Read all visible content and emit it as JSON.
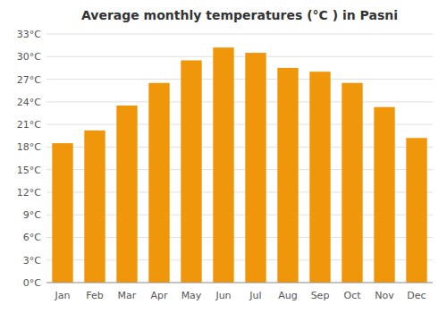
{
  "chart_data": {
    "type": "bar",
    "title": "Average monthly temperatures (°C ) in Pasni",
    "categories": [
      "Jan",
      "Feb",
      "Mar",
      "Apr",
      "May",
      "Jun",
      "Jul",
      "Aug",
      "Sep",
      "Oct",
      "Nov",
      "Dec"
    ],
    "values": [
      18.5,
      20.2,
      23.5,
      26.5,
      29.5,
      31.2,
      30.5,
      28.5,
      28.0,
      26.5,
      23.3,
      19.2
    ],
    "color": "#F0960A",
    "ylim": [
      0,
      33
    ],
    "yticks": [
      {
        "value": 0,
        "label": "0°C"
      },
      {
        "value": 3,
        "label": "3°C"
      },
      {
        "value": 6,
        "label": "6°C"
      },
      {
        "value": 9,
        "label": "9°C"
      },
      {
        "value": 12,
        "label": "12°C"
      },
      {
        "value": 15,
        "label": "15°C"
      },
      {
        "value": 18,
        "label": "18°C"
      },
      {
        "value": 21,
        "label": "21°C"
      },
      {
        "value": 24,
        "label": "24°C"
      },
      {
        "value": 27,
        "label": "27°C"
      },
      {
        "value": 30,
        "label": "30°C"
      },
      {
        "value": 33,
        "label": "33°C"
      }
    ],
    "grid": true
  }
}
